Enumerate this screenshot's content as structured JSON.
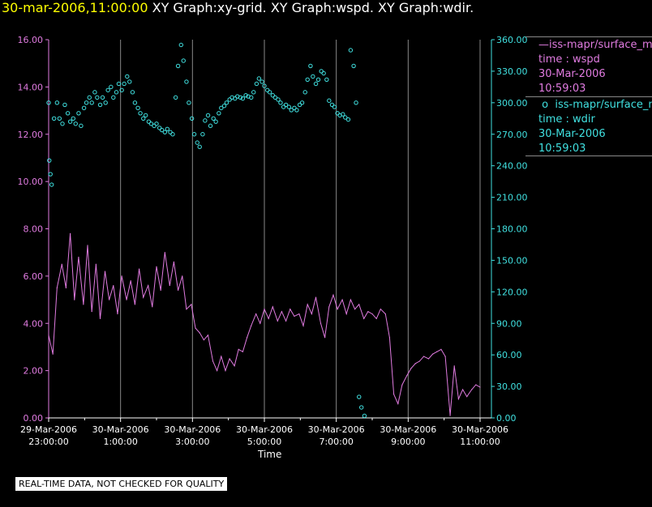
{
  "header": {
    "timestamp": "30-mar-2006,11:00:00",
    "rest": " XY Graph:xy-grid.  XY Graph:wspd.  XY Graph:wdir."
  },
  "legend": {
    "series1": {
      "name": "iss-mapr/surface_m",
      "line2": "time : wspd",
      "line3": "30-Mar-2006",
      "line4": "10:59:03"
    },
    "series2": {
      "name": "iss-mapr/surface_m",
      "line2": "time : wdir",
      "line3": "30-Mar-2006",
      "line4": "10:59:03"
    }
  },
  "footer": {
    "disclaimer": "REAL-TIME DATA, NOT CHECKED FOR QUALITY"
  },
  "colors": {
    "wspd": "#e07be0",
    "wdir": "#40e0e0",
    "grid": "#888888",
    "background": "#000000"
  },
  "chart_data": {
    "type": "line",
    "xlabel": "Time",
    "x_ticks": [
      {
        "hour": 0,
        "line1": "29-Mar-2006",
        "line2": "23:00:00"
      },
      {
        "hour": 2,
        "line1": "30-Mar-2006",
        "line2": "1:00:00"
      },
      {
        "hour": 4,
        "line1": "30-Mar-2006",
        "line2": "3:00:00"
      },
      {
        "hour": 6,
        "line1": "30-Mar-2006",
        "line2": "5:00:00"
      },
      {
        "hour": 8,
        "line1": "30-Mar-2006",
        "line2": "7:00:00"
      },
      {
        "hour": 10,
        "line1": "30-Mar-2006",
        "line2": "9:00:00"
      },
      {
        "hour": 12,
        "line1": "30-Mar-2006",
        "line2": "11:00:00"
      }
    ],
    "xlim": [
      "29-Mar-2006 23:00:00",
      "30-Mar-2006 11:00:00"
    ],
    "y_left": {
      "ticks": [
        "0.00",
        "2.00",
        "4.00",
        "6.00",
        "8.00",
        "10.00",
        "12.00",
        "14.00",
        "16.00"
      ],
      "ylim": [
        0,
        16
      ]
    },
    "y_right": {
      "ticks": [
        "0.00",
        "30.00",
        "60.00",
        "90.00",
        "120.00",
        "150.00",
        "180.00",
        "210.00",
        "240.00",
        "270.00",
        "300.00",
        "330.00",
        "360.00"
      ],
      "ylim": [
        0,
        360
      ]
    },
    "series": [
      {
        "name": "wspd",
        "axis": "left",
        "style": "line",
        "points": [
          [
            "29-Mar-2006 23:00:00",
            3.5
          ],
          [
            "29-Mar-2006 23:07:00",
            2.7
          ],
          [
            "29-Mar-2006 23:14:00",
            5.5
          ],
          [
            "29-Mar-2006 23:22:00",
            6.5
          ],
          [
            "29-Mar-2006 23:29:00",
            5.5
          ],
          [
            "29-Mar-2006 23:36:00",
            7.8
          ],
          [
            "29-Mar-2006 23:43:00",
            5.0
          ],
          [
            "29-Mar-2006 23:50:00",
            6.8
          ],
          [
            "29-Mar-2006 23:58:00",
            4.8
          ],
          [
            "30-Mar-2006 00:05:00",
            7.3
          ],
          [
            "30-Mar-2006 00:12:00",
            4.5
          ],
          [
            "30-Mar-2006 00:19:00",
            6.5
          ],
          [
            "30-Mar-2006 00:26:00",
            4.2
          ],
          [
            "30-Mar-2006 00:34:00",
            6.2
          ],
          [
            "30-Mar-2006 00:41:00",
            5.0
          ],
          [
            "30-Mar-2006 00:48:00",
            5.6
          ],
          [
            "30-Mar-2006 00:55:00",
            4.4
          ],
          [
            "30-Mar-2006 01:02:00",
            6.0
          ],
          [
            "30-Mar-2006 01:10:00",
            5.0
          ],
          [
            "30-Mar-2006 01:17:00",
            5.8
          ],
          [
            "30-Mar-2006 01:24:00",
            4.8
          ],
          [
            "30-Mar-2006 01:31:00",
            6.3
          ],
          [
            "30-Mar-2006 01:38:00",
            5.1
          ],
          [
            "30-Mar-2006 01:46:00",
            5.6
          ],
          [
            "30-Mar-2006 01:53:00",
            4.7
          ],
          [
            "30-Mar-2006 02:00:00",
            6.4
          ],
          [
            "30-Mar-2006 02:07:00",
            5.4
          ],
          [
            "30-Mar-2006 02:14:00",
            7.0
          ],
          [
            "30-Mar-2006 02:22:00",
            5.6
          ],
          [
            "30-Mar-2006 02:29:00",
            6.6
          ],
          [
            "30-Mar-2006 02:36:00",
            5.4
          ],
          [
            "30-Mar-2006 02:43:00",
            6.0
          ],
          [
            "30-Mar-2006 02:50:00",
            4.6
          ],
          [
            "30-Mar-2006 02:58:00",
            4.8
          ],
          [
            "30-Mar-2006 03:05:00",
            3.8
          ],
          [
            "30-Mar-2006 03:12:00",
            3.6
          ],
          [
            "30-Mar-2006 03:19:00",
            3.3
          ],
          [
            "30-Mar-2006 03:26:00",
            3.5
          ],
          [
            "30-Mar-2006 03:34:00",
            2.4
          ],
          [
            "30-Mar-2006 03:41:00",
            2.0
          ],
          [
            "30-Mar-2006 03:48:00",
            2.6
          ],
          [
            "30-Mar-2006 03:55:00",
            2.0
          ],
          [
            "30-Mar-2006 04:02:00",
            2.5
          ],
          [
            "30-Mar-2006 04:10:00",
            2.2
          ],
          [
            "30-Mar-2006 04:17:00",
            2.9
          ],
          [
            "30-Mar-2006 04:24:00",
            2.8
          ],
          [
            "30-Mar-2006 04:31:00",
            3.4
          ],
          [
            "30-Mar-2006 04:38:00",
            3.9
          ],
          [
            "30-Mar-2006 04:46:00",
            4.4
          ],
          [
            "30-Mar-2006 04:53:00",
            4.0
          ],
          [
            "30-Mar-2006 05:00:00",
            4.6
          ],
          [
            "30-Mar-2006 05:07:00",
            4.2
          ],
          [
            "30-Mar-2006 05:14:00",
            4.7
          ],
          [
            "30-Mar-2006 05:22:00",
            4.1
          ],
          [
            "30-Mar-2006 05:29:00",
            4.5
          ],
          [
            "30-Mar-2006 05:36:00",
            4.1
          ],
          [
            "30-Mar-2006 05:43:00",
            4.6
          ],
          [
            "30-Mar-2006 05:50:00",
            4.3
          ],
          [
            "30-Mar-2006 05:58:00",
            4.4
          ],
          [
            "30-Mar-2006 06:05:00",
            3.9
          ],
          [
            "30-Mar-2006 06:12:00",
            4.8
          ],
          [
            "30-Mar-2006 06:19:00",
            4.4
          ],
          [
            "30-Mar-2006 06:26:00",
            5.1
          ],
          [
            "30-Mar-2006 06:34:00",
            4.0
          ],
          [
            "30-Mar-2006 06:41:00",
            3.4
          ],
          [
            "30-Mar-2006 06:48:00",
            4.7
          ],
          [
            "30-Mar-2006 06:55:00",
            5.2
          ],
          [
            "30-Mar-2006 07:02:00",
            4.6
          ],
          [
            "30-Mar-2006 07:10:00",
            5.0
          ],
          [
            "30-Mar-2006 07:17:00",
            4.4
          ],
          [
            "30-Mar-2006 07:24:00",
            5.0
          ],
          [
            "30-Mar-2006 07:31:00",
            4.6
          ],
          [
            "30-Mar-2006 07:38:00",
            4.8
          ],
          [
            "30-Mar-2006 07:46:00",
            4.2
          ],
          [
            "30-Mar-2006 07:53:00",
            4.5
          ],
          [
            "30-Mar-2006 08:00:00",
            4.4
          ],
          [
            "30-Mar-2006 08:07:00",
            4.2
          ],
          [
            "30-Mar-2006 08:14:00",
            4.6
          ],
          [
            "30-Mar-2006 08:22:00",
            4.4
          ],
          [
            "30-Mar-2006 08:29:00",
            3.4
          ],
          [
            "30-Mar-2006 08:36:00",
            1.0
          ],
          [
            "30-Mar-2006 08:43:00",
            0.6
          ],
          [
            "30-Mar-2006 08:50:00",
            1.4
          ],
          [
            "30-Mar-2006 08:58:00",
            1.8
          ],
          [
            "30-Mar-2006 09:05:00",
            2.1
          ],
          [
            "30-Mar-2006 09:12:00",
            2.3
          ],
          [
            "30-Mar-2006 09:19:00",
            2.4
          ],
          [
            "30-Mar-2006 09:26:00",
            2.6
          ],
          [
            "30-Mar-2006 09:34:00",
            2.5
          ],
          [
            "30-Mar-2006 09:41:00",
            2.7
          ],
          [
            "30-Mar-2006 09:48:00",
            2.8
          ],
          [
            "30-Mar-2006 09:55:00",
            2.9
          ],
          [
            "30-Mar-2006 10:02:00",
            2.6
          ],
          [
            "30-Mar-2006 10:10:00",
            0.1
          ],
          [
            "30-Mar-2006 10:17:00",
            2.2
          ],
          [
            "30-Mar-2006 10:24:00",
            0.8
          ],
          [
            "30-Mar-2006 10:31:00",
            1.2
          ],
          [
            "30-Mar-2006 10:38:00",
            0.9
          ],
          [
            "30-Mar-2006 10:46:00",
            1.2
          ],
          [
            "30-Mar-2006 10:53:00",
            1.4
          ],
          [
            "30-Mar-2006 11:00:00",
            1.3
          ]
        ]
      },
      {
        "name": "wdir",
        "axis": "right",
        "style": "markers",
        "points": [
          [
            "29-Mar-2006 23:00:00",
            300
          ],
          [
            "29-Mar-2006 23:01:00",
            245
          ],
          [
            "29-Mar-2006 23:03:00",
            232
          ],
          [
            "29-Mar-2006 23:05:00",
            222
          ],
          [
            "29-Mar-2006 23:09:00",
            285
          ],
          [
            "29-Mar-2006 23:14:00",
            300
          ],
          [
            "29-Mar-2006 23:18:00",
            285
          ],
          [
            "29-Mar-2006 23:23:00",
            280
          ],
          [
            "29-Mar-2006 23:27:00",
            298
          ],
          [
            "29-Mar-2006 23:32:00",
            290
          ],
          [
            "29-Mar-2006 23:36:00",
            282
          ],
          [
            "29-Mar-2006 23:41:00",
            285
          ],
          [
            "29-Mar-2006 23:45:00",
            280
          ],
          [
            "29-Mar-2006 23:50:00",
            290
          ],
          [
            "29-Mar-2006 23:54:00",
            278
          ],
          [
            "29-Mar-2006 23:59:00",
            295
          ],
          [
            "30-Mar-2006 00:03:00",
            300
          ],
          [
            "30-Mar-2006 00:08:00",
            305
          ],
          [
            "30-Mar-2006 00:12:00",
            300
          ],
          [
            "30-Mar-2006 00:17:00",
            310
          ],
          [
            "30-Mar-2006 00:21:00",
            305
          ],
          [
            "30-Mar-2006 00:26:00",
            298
          ],
          [
            "30-Mar-2006 00:30:00",
            305
          ],
          [
            "30-Mar-2006 00:35:00",
            300
          ],
          [
            "30-Mar-2006 00:39:00",
            312
          ],
          [
            "30-Mar-2006 00:44:00",
            315
          ],
          [
            "30-Mar-2006 00:48:00",
            305
          ],
          [
            "30-Mar-2006 00:53:00",
            310
          ],
          [
            "30-Mar-2006 00:57:00",
            318
          ],
          [
            "30-Mar-2006 01:02:00",
            312
          ],
          [
            "30-Mar-2006 01:06:00",
            318
          ],
          [
            "30-Mar-2006 01:11:00",
            325
          ],
          [
            "30-Mar-2006 01:15:00",
            320
          ],
          [
            "30-Mar-2006 01:20:00",
            310
          ],
          [
            "30-Mar-2006 01:24:00",
            300
          ],
          [
            "30-Mar-2006 01:29:00",
            295
          ],
          [
            "30-Mar-2006 01:33:00",
            290
          ],
          [
            "30-Mar-2006 01:38:00",
            285
          ],
          [
            "30-Mar-2006 01:42:00",
            288
          ],
          [
            "30-Mar-2006 01:47:00",
            282
          ],
          [
            "30-Mar-2006 01:51:00",
            280
          ],
          [
            "30-Mar-2006 01:56:00",
            278
          ],
          [
            "30-Mar-2006 02:00:00",
            280
          ],
          [
            "30-Mar-2006 02:05:00",
            276
          ],
          [
            "30-Mar-2006 02:09:00",
            274
          ],
          [
            "30-Mar-2006 02:14:00",
            272
          ],
          [
            "30-Mar-2006 02:18:00",
            275
          ],
          [
            "30-Mar-2006 02:23:00",
            272
          ],
          [
            "30-Mar-2006 02:27:00",
            270
          ],
          [
            "30-Mar-2006 02:32:00",
            305
          ],
          [
            "30-Mar-2006 02:36:00",
            335
          ],
          [
            "30-Mar-2006 02:41:00",
            355
          ],
          [
            "30-Mar-2006 02:45:00",
            340
          ],
          [
            "30-Mar-2006 02:50:00",
            320
          ],
          [
            "30-Mar-2006 02:54:00",
            300
          ],
          [
            "30-Mar-2006 02:59:00",
            285
          ],
          [
            "30-Mar-2006 03:03:00",
            270
          ],
          [
            "30-Mar-2006 03:08:00",
            262
          ],
          [
            "30-Mar-2006 03:12:00",
            258
          ],
          [
            "30-Mar-2006 03:17:00",
            270
          ],
          [
            "30-Mar-2006 03:21:00",
            283
          ],
          [
            "30-Mar-2006 03:26:00",
            288
          ],
          [
            "30-Mar-2006 03:30:00",
            278
          ],
          [
            "30-Mar-2006 03:35:00",
            285
          ],
          [
            "30-Mar-2006 03:39:00",
            282
          ],
          [
            "30-Mar-2006 03:44:00",
            290
          ],
          [
            "30-Mar-2006 03:48:00",
            295
          ],
          [
            "30-Mar-2006 03:53:00",
            297
          ],
          [
            "30-Mar-2006 03:57:00",
            300
          ],
          [
            "30-Mar-2006 04:02:00",
            303
          ],
          [
            "30-Mar-2006 04:06:00",
            305
          ],
          [
            "30-Mar-2006 04:11:00",
            304
          ],
          [
            "30-Mar-2006 04:15:00",
            306
          ],
          [
            "30-Mar-2006 04:20:00",
            305
          ],
          [
            "30-Mar-2006 04:24:00",
            304
          ],
          [
            "30-Mar-2006 04:29:00",
            307
          ],
          [
            "30-Mar-2006 04:33:00",
            306
          ],
          [
            "30-Mar-2006 04:38:00",
            305
          ],
          [
            "30-Mar-2006 04:42:00",
            310
          ],
          [
            "30-Mar-2006 04:47:00",
            318
          ],
          [
            "30-Mar-2006 04:51:00",
            323
          ],
          [
            "30-Mar-2006 04:56:00",
            320
          ],
          [
            "30-Mar-2006 05:00:00",
            316
          ],
          [
            "30-Mar-2006 05:05:00",
            312
          ],
          [
            "30-Mar-2006 05:09:00",
            310
          ],
          [
            "30-Mar-2006 05:14:00",
            307
          ],
          [
            "30-Mar-2006 05:18:00",
            305
          ],
          [
            "30-Mar-2006 05:23:00",
            303
          ],
          [
            "30-Mar-2006 05:27:00",
            300
          ],
          [
            "30-Mar-2006 05:32:00",
            296
          ],
          [
            "30-Mar-2006 05:36:00",
            298
          ],
          [
            "30-Mar-2006 05:41:00",
            296
          ],
          [
            "30-Mar-2006 05:45:00",
            293
          ],
          [
            "30-Mar-2006 05:50:00",
            295
          ],
          [
            "30-Mar-2006 05:54:00",
            293
          ],
          [
            "30-Mar-2006 05:59:00",
            298
          ],
          [
            "30-Mar-2006 06:03:00",
            300
          ],
          [
            "30-Mar-2006 06:08:00",
            310
          ],
          [
            "30-Mar-2006 06:12:00",
            322
          ],
          [
            "30-Mar-2006 06:17:00",
            335
          ],
          [
            "30-Mar-2006 06:21:00",
            325
          ],
          [
            "30-Mar-2006 06:26:00",
            318
          ],
          [
            "30-Mar-2006 06:30:00",
            322
          ],
          [
            "30-Mar-2006 06:35:00",
            330
          ],
          [
            "30-Mar-2006 06:39:00",
            328
          ],
          [
            "30-Mar-2006 06:44:00",
            322
          ],
          [
            "30-Mar-2006 06:48:00",
            302
          ],
          [
            "30-Mar-2006 06:53:00",
            298
          ],
          [
            "30-Mar-2006 06:57:00",
            296
          ],
          [
            "30-Mar-2006 07:02:00",
            290
          ],
          [
            "30-Mar-2006 07:06:00",
            288
          ],
          [
            "30-Mar-2006 07:11:00",
            289
          ],
          [
            "30-Mar-2006 07:15:00",
            286
          ],
          [
            "30-Mar-2006 07:20:00",
            284
          ],
          [
            "30-Mar-2006 07:24:00",
            350
          ],
          [
            "30-Mar-2006 07:29:00",
            335
          ],
          [
            "30-Mar-2006 07:33:00",
            300
          ],
          [
            "30-Mar-2006 07:38:00",
            20
          ],
          [
            "30-Mar-2006 07:42:00",
            10
          ],
          [
            "30-Mar-2006 07:47:00",
            2
          ]
        ]
      }
    ]
  }
}
